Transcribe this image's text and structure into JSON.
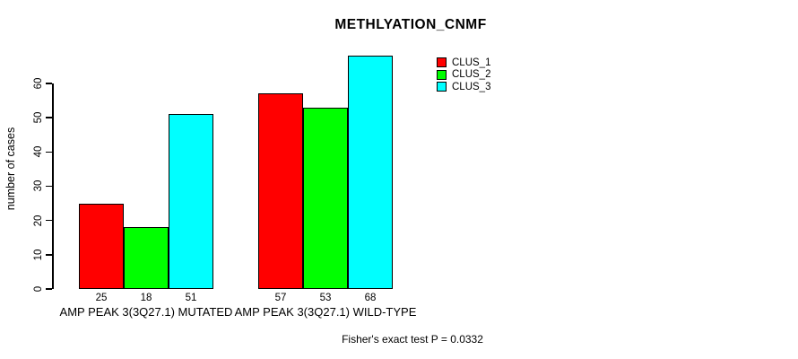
{
  "chart": {
    "title": "METHLYATION_CNMF",
    "ylabel": "number of cases",
    "footnote": "Fisher's exact test P = 0.0332"
  },
  "chart_data": {
    "type": "bar",
    "title": "METHLYATION_CNMF",
    "xlabel": "",
    "ylabel": "number of cases",
    "categories": [
      "AMP PEAK 3(3Q27.1) MUTATED",
      "AMP PEAK 3(3Q27.1) WILD-TYPE"
    ],
    "series": [
      {
        "name": "CLUS_1",
        "color": "#ff0000",
        "values": [
          25,
          57
        ]
      },
      {
        "name": "CLUS_2",
        "color": "#00ff00",
        "values": [
          18,
          53
        ]
      },
      {
        "name": "CLUS_3",
        "color": "#00ffff",
        "values": [
          51,
          68
        ]
      }
    ],
    "bar_value_labels": [
      [
        25,
        18,
        51
      ],
      [
        57,
        53,
        68
      ]
    ],
    "yticks": [
      0,
      10,
      20,
      30,
      40,
      50,
      60
    ],
    "ylim": [
      0,
      68
    ],
    "grid": false,
    "legend_position": "top-right",
    "annotation": "Fisher's exact test P = 0.0332",
    "colors": {
      "background": "#ffffff",
      "axis": "#000000",
      "text": "#000000"
    }
  }
}
